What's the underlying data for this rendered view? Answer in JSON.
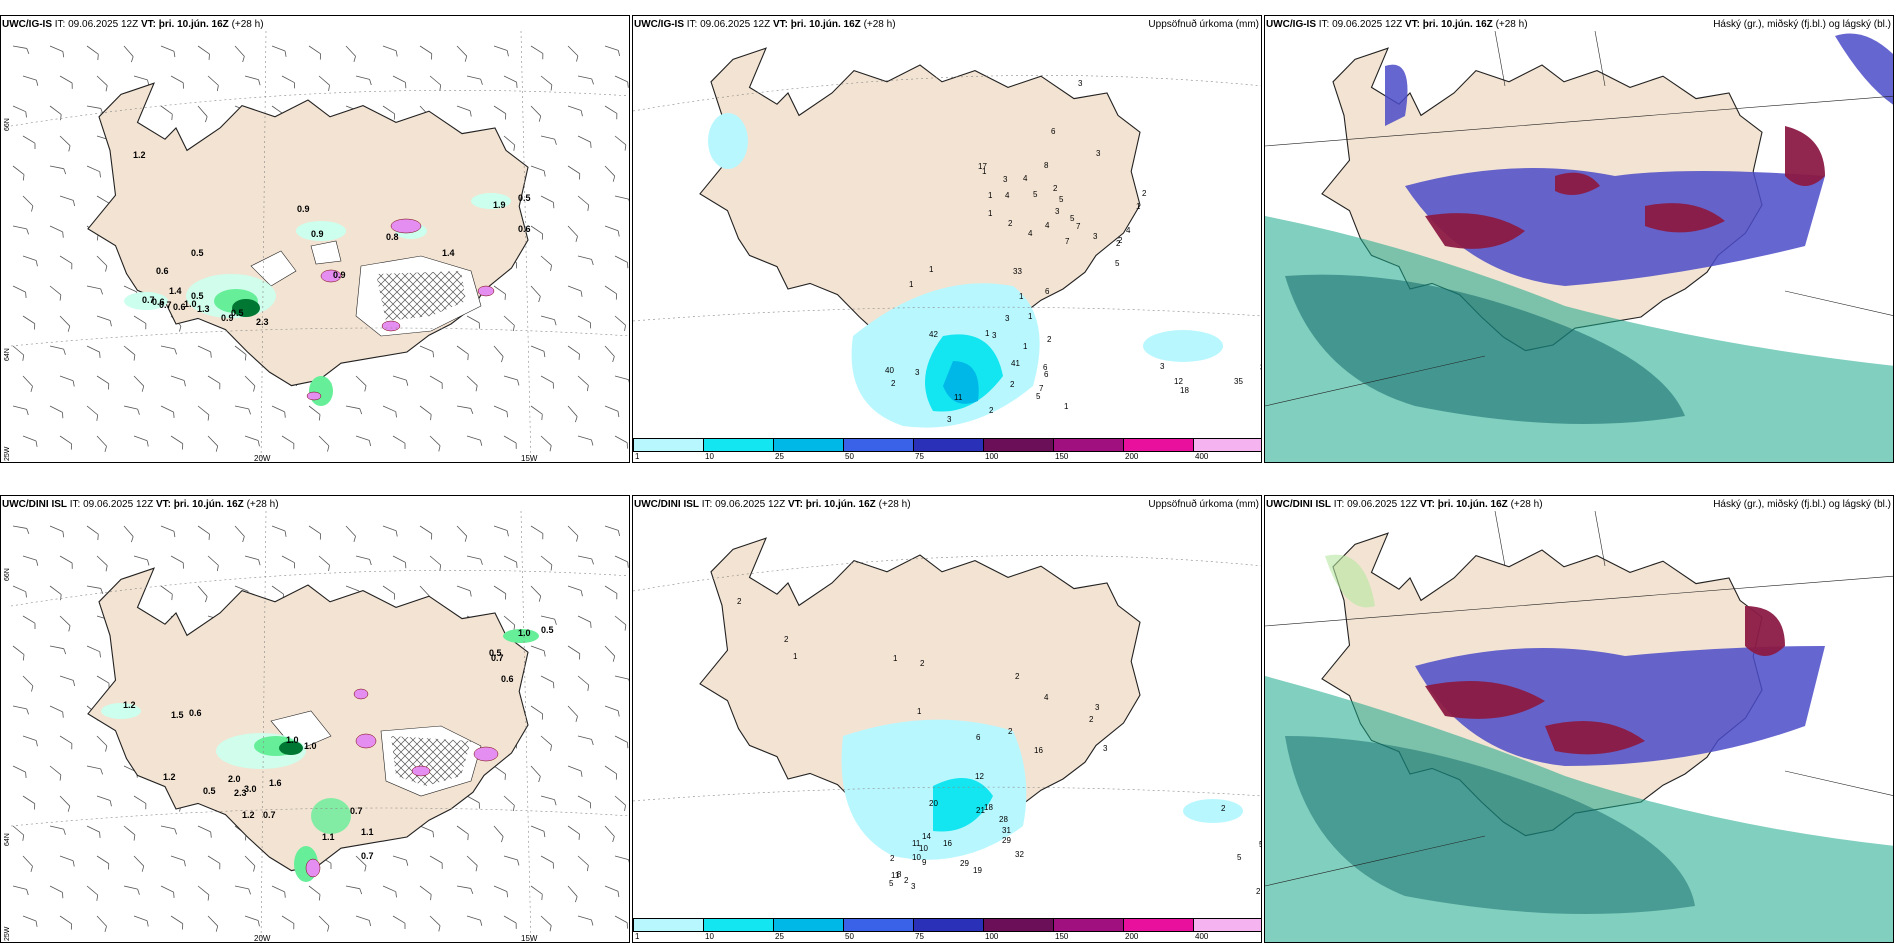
{
  "colors": {
    "land": "#f3e3d2",
    "coast": "#222222",
    "grid_line": "#888888",
    "precip_light": "#ccffee",
    "precip_mid": "#66ee99",
    "precip_dark": "#007733",
    "mag_pink": "#e38ef0",
    "cyan1": "#b9f7ff",
    "cyan2": "#13e6f0",
    "cyan3": "#00b8e8",
    "cloud_low": "#4b4bc8",
    "cloud_mid": "#1aa88a",
    "cloud_high": "#8b1a45"
  },
  "colorbar": {
    "ticks": [
      "1",
      "10",
      "25",
      "50",
      "75",
      "100",
      "150",
      "200",
      "400"
    ],
    "colors": [
      "#b9f7ff",
      "#13e6f0",
      "#00b8e8",
      "#3a62e8",
      "#2a30b8",
      "#6b1058",
      "#a0107e",
      "#e8109c",
      "#f5b3f0"
    ]
  },
  "top_row": {
    "p1": {
      "model": "UWC/IG-IS",
      "it_label": "IT:",
      "it_value": "09.06.2025 12Z",
      "vt_label": "VT:",
      "vt_value": "þri. 10.jún. 16Z",
      "lead": "(+28 h)",
      "lat_labels": [
        "66N",
        "64N",
        "25W"
      ],
      "lon_labels": [
        "20W",
        "15W"
      ],
      "values": [
        "1.2",
        "0.9",
        "0.5",
        "0.6",
        "0.9",
        "1.4",
        "0.5",
        "0.7",
        "0.6",
        "0.6",
        "0.7",
        "1.0",
        "1.3",
        "2.3",
        "0.9",
        "0.5",
        "0.8",
        "1.9",
        "0.5",
        "0.6",
        "1.4",
        "0.9"
      ]
    },
    "p2": {
      "model": "UWC/IG-IS",
      "it_label": "IT:",
      "it_value": "09.06.2025 12Z",
      "vt_label": "VT:",
      "vt_value": "þri. 10.jún. 16Z",
      "lead": "(+28 h)",
      "right_title": "Uppsöfnuð úrkoma (mm)",
      "values": [
        "3",
        "6",
        "3",
        "1",
        "17",
        "3",
        "4",
        "1",
        "4",
        "5",
        "2",
        "3",
        "5",
        "3",
        "2",
        "2",
        "4",
        "1",
        "2",
        "8",
        "1",
        "2",
        "4",
        "7",
        "5",
        "4",
        "7",
        "5",
        "6",
        "1",
        "1",
        "3",
        "1",
        "1",
        "2",
        "6",
        "6",
        "7",
        "5",
        "1",
        "3",
        "12",
        "18",
        "35",
        "35",
        "41",
        "33",
        "42",
        "40",
        "2",
        "3",
        "3",
        "11",
        "2",
        "2",
        "3",
        "1",
        "1"
      ]
    },
    "p3": {
      "model": "UWC/IG-IS",
      "it_label": "IT:",
      "it_value": "09.06.2025 12Z",
      "vt_label": "VT:",
      "vt_value": "þri. 10.jún. 16Z",
      "lead": "(+28 h)",
      "right_title": "Háský (gr.), miðský (fj.bl.) og lágský (bl.)"
    }
  },
  "bottom_row": {
    "p1": {
      "model": "UWC/DINI ISL",
      "it_label": "IT:",
      "it_value": "09.06.2025 12Z",
      "vt_label": "VT:",
      "vt_value": "þri. 10.jún. 16Z",
      "lead": "(+28 h)",
      "lat_labels": [
        "66N",
        "64N",
        "25W"
      ],
      "lon_labels": [
        "20W",
        "15W"
      ],
      "values": [
        "1.0",
        "0.5",
        "1.2",
        "1.5",
        "0.6",
        "0.7",
        "1.2",
        "2.0",
        "3.0",
        "1.6",
        "0.5",
        "2.3",
        "1.0",
        "1.0",
        "1.2",
        "0.7",
        "0.7",
        "1.1",
        "1.1",
        "0.7",
        "0.5",
        "0.6"
      ]
    },
    "p2": {
      "model": "UWC/DINI ISL",
      "it_label": "IT:",
      "it_value": "09.06.2025 12Z",
      "vt_label": "VT:",
      "vt_value": "þri. 10.jún. 16Z",
      "lead": "(+28 h)",
      "right_title": "Uppsöfnuð úrkoma (mm)",
      "values": [
        "2",
        "2",
        "1",
        "1",
        "2",
        "2",
        "1",
        "2",
        "4",
        "2",
        "3",
        "3",
        "12",
        "6",
        "16",
        "18",
        "21",
        "28",
        "31",
        "29",
        "32",
        "20",
        "16",
        "29",
        "19",
        "11",
        "10",
        "9",
        "14",
        "11",
        "10",
        "8",
        "2",
        "5",
        "3",
        "2",
        "2",
        "5",
        "5",
        "2",
        "2"
      ]
    },
    "p3": {
      "model": "UWC/DINI ISL",
      "it_label": "IT:",
      "it_value": "09.06.2025 12Z",
      "vt_label": "VT:",
      "vt_value": "þri. 10.jún. 16Z",
      "lead": "(+28 h)",
      "right_title": "Háský (gr.), miðský (fj.bl.) og lágský (bl.)"
    }
  }
}
